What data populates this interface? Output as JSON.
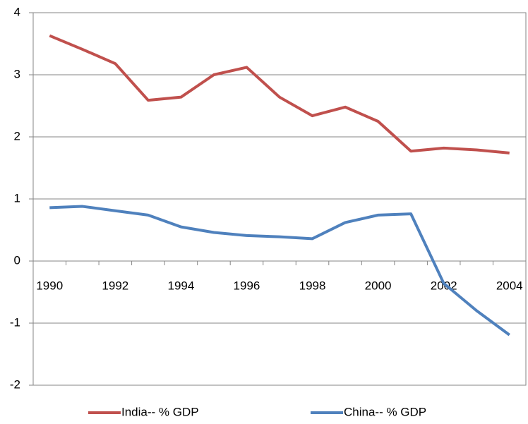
{
  "chart_data": {
    "type": "line",
    "categories": [
      "1990",
      null,
      "1992",
      null,
      "1994",
      null,
      "1996",
      null,
      "1998",
      null,
      "2000",
      null,
      "2002",
      null,
      "2004"
    ],
    "series": [
      {
        "name": "India-- % GDP",
        "color": "#c0504d",
        "values": [
          3.63,
          3.41,
          3.18,
          2.59,
          2.64,
          3.0,
          3.12,
          2.64,
          2.34,
          2.48,
          2.25,
          1.77,
          1.82,
          1.79,
          1.74
        ]
      },
      {
        "name": "China-- % GDP",
        "color": "#4f81bd",
        "values": [
          0.86,
          0.88,
          0.81,
          0.74,
          0.55,
          0.46,
          0.41,
          0.39,
          0.36,
          0.62,
          0.74,
          0.76,
          -0.36,
          -0.8,
          -1.19
        ]
      }
    ],
    "ylim": [
      -2,
      4
    ],
    "yticks": [
      -2,
      -1,
      0,
      1,
      2,
      3,
      4
    ],
    "grid": true,
    "legend": "bottom"
  }
}
